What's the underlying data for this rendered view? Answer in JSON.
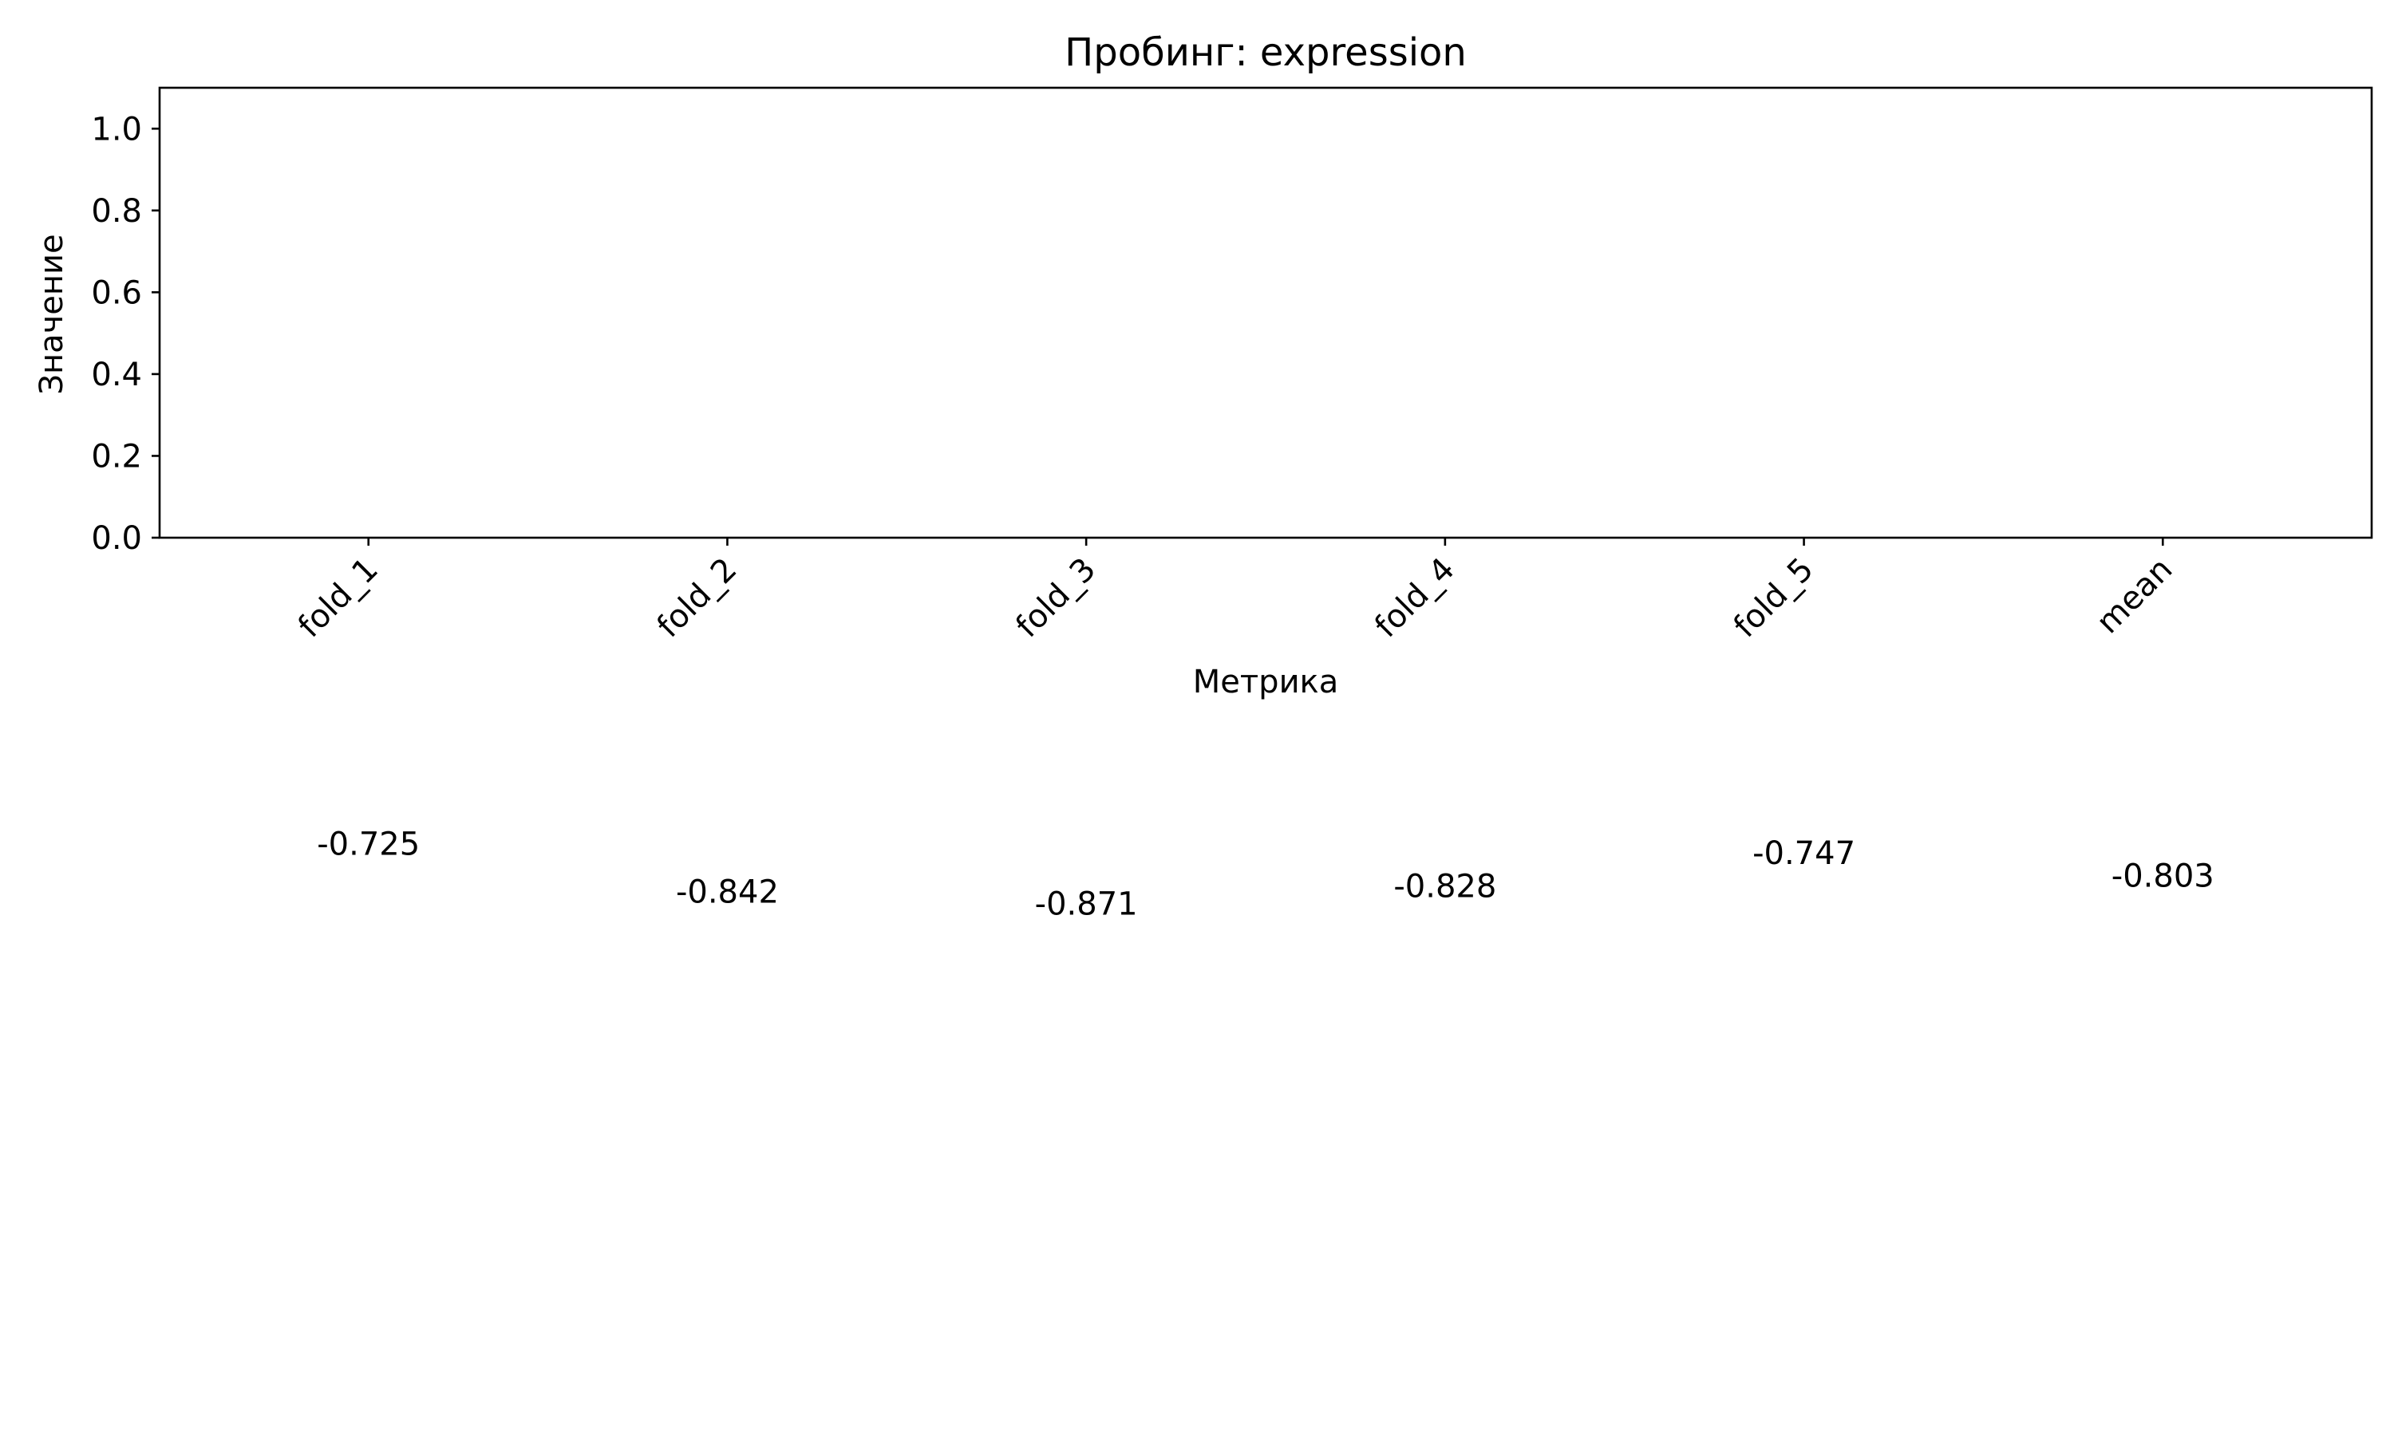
{
  "chart_data": {
    "type": "bar",
    "title": "Пробинг: expression",
    "xlabel": "Метрика",
    "ylabel": "Значение",
    "categories": [
      "fold_1",
      "fold_2",
      "fold_3",
      "fold_4",
      "fold_5",
      "mean"
    ],
    "values": [
      -0.725,
      -0.842,
      -0.871,
      -0.828,
      -0.747,
      -0.803
    ],
    "value_labels": [
      "-0.725",
      "-0.842",
      "-0.871",
      "-0.828",
      "-0.747",
      "-0.803"
    ],
    "ylim": [
      0,
      1.1
    ],
    "yticks": [
      0.0,
      0.2,
      0.4,
      0.6,
      0.8,
      1.0
    ],
    "ytick_labels": [
      "0.0",
      "0.2",
      "0.4",
      "0.6",
      "0.8",
      "1.0"
    ],
    "grid": false,
    "legend": "none",
    "bar_color": "#1f77b4"
  }
}
